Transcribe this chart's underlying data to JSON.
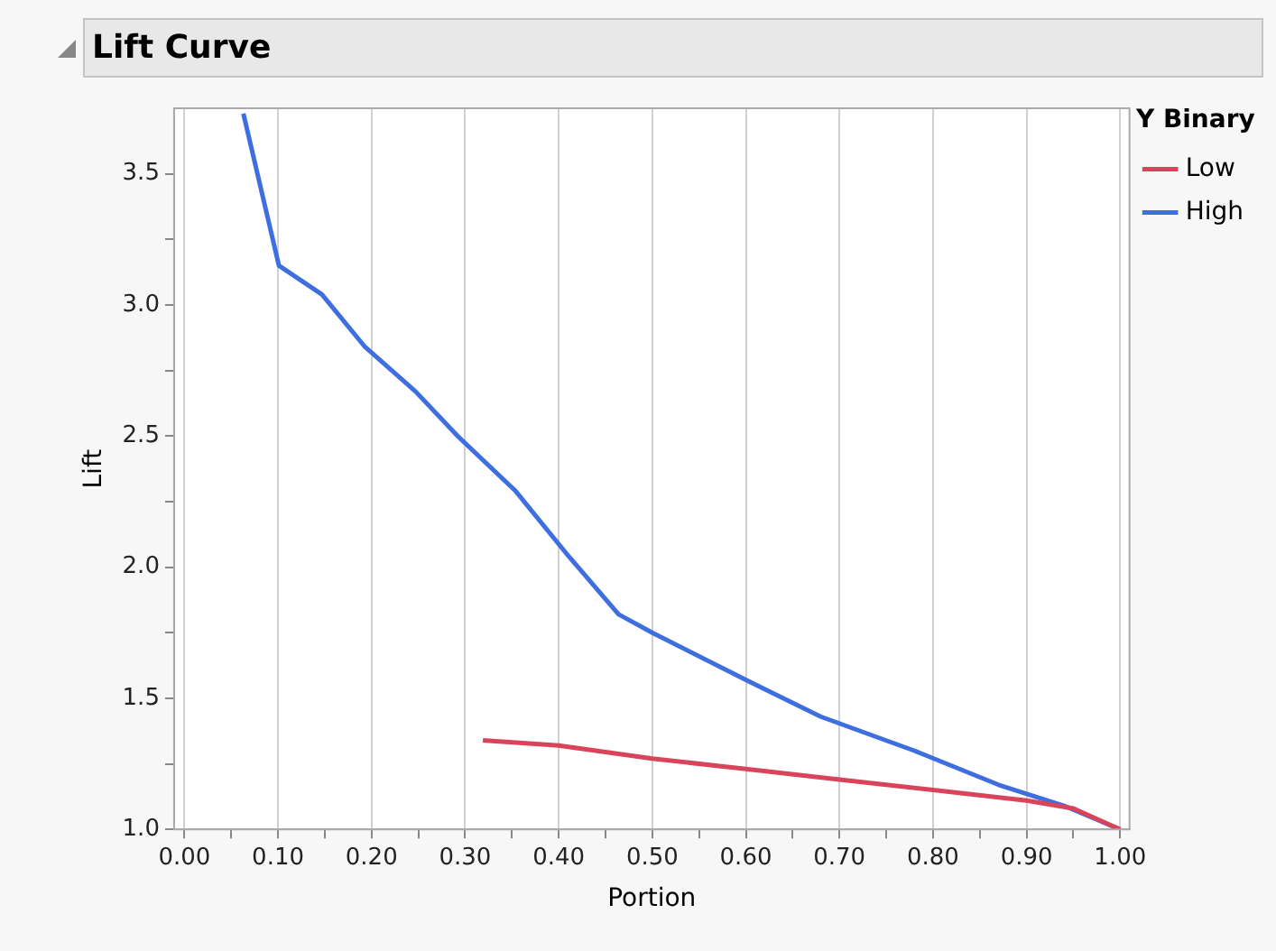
{
  "chart_data": {
    "type": "line",
    "title": "Lift Curve",
    "xlabel": "Portion",
    "ylabel": "Lift",
    "legend_title": "Y Binary",
    "xlim": [
      -0.011,
      1.01
    ],
    "ylim": [
      1.0,
      3.75
    ],
    "xticks": [
      {
        "value": 0,
        "label": "0.00"
      },
      {
        "value": 0.05,
        "label": null
      },
      {
        "value": 0.1,
        "label": "0.10"
      },
      {
        "value": 0.15,
        "label": null
      },
      {
        "value": 0.2,
        "label": "0.20"
      },
      {
        "value": 0.25,
        "label": null
      },
      {
        "value": 0.3,
        "label": "0.30"
      },
      {
        "value": 0.35,
        "label": null
      },
      {
        "value": 0.4,
        "label": "0.40"
      },
      {
        "value": 0.45,
        "label": null
      },
      {
        "value": 0.5,
        "label": "0.50"
      },
      {
        "value": 0.55,
        "label": null
      },
      {
        "value": 0.6,
        "label": "0.60"
      },
      {
        "value": 0.65,
        "label": null
      },
      {
        "value": 0.7,
        "label": "0.70"
      },
      {
        "value": 0.75,
        "label": null
      },
      {
        "value": 0.8,
        "label": "0.80"
      },
      {
        "value": 0.85,
        "label": null
      },
      {
        "value": 0.9,
        "label": "0.90"
      },
      {
        "value": 0.95,
        "label": null
      },
      {
        "value": 1,
        "label": "1.00"
      }
    ],
    "yticks": [
      {
        "value": 1,
        "label": "1.0"
      },
      {
        "value": 1.25,
        "label": null
      },
      {
        "value": 1.5,
        "label": "1.5"
      },
      {
        "value": 1.75,
        "label": null
      },
      {
        "value": 2,
        "label": "2.0"
      },
      {
        "value": 2.25,
        "label": null
      },
      {
        "value": 2.5,
        "label": "2.5"
      },
      {
        "value": 2.75,
        "label": null
      },
      {
        "value": 3,
        "label": "3.0"
      },
      {
        "value": 3.25,
        "label": null
      },
      {
        "value": 3.5,
        "label": "3.5"
      }
    ],
    "grid": "x",
    "legend": "top right",
    "marker": "none",
    "line_style": "solid",
    "series": [
      {
        "name": "Low",
        "color": "#d9445a",
        "x": [
          0.319,
          0.4,
          0.5,
          0.6,
          0.7,
          0.8,
          0.9,
          0.95,
          1.0
        ],
        "values": [
          1.34,
          1.32,
          1.27,
          1.23,
          1.19,
          1.15,
          1.11,
          1.08,
          1.0
        ]
      },
      {
        "name": "High",
        "color": "#3e6ee0",
        "x": [
          0.063,
          0.101,
          0.147,
          0.193,
          0.247,
          0.292,
          0.354,
          0.411,
          0.464,
          0.5,
          0.6,
          0.68,
          0.78,
          0.87,
          0.94,
          1.0
        ],
        "values": [
          3.73,
          3.15,
          3.04,
          2.84,
          2.67,
          2.5,
          2.29,
          2.04,
          1.82,
          1.75,
          1.57,
          1.43,
          1.3,
          1.17,
          1.09,
          1.0
        ]
      }
    ]
  }
}
